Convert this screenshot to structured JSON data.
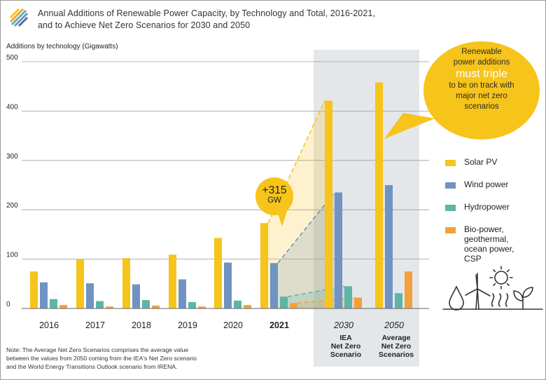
{
  "header": {
    "title_line1": "Annual Additions of Renewable Power Capacity, by Technology and Total, 2016-2021,",
    "title_line2": "and to Achieve Net Zero Scenarios for 2030 and 2050"
  },
  "callout": {
    "line1": "Renewable",
    "line2": "power additions",
    "emphasis": "must triple",
    "line3": "to be on track with",
    "line4": "major net zero",
    "line5": "scenarios"
  },
  "badge": {
    "value": "+315",
    "unit": "GW"
  },
  "legend": [
    {
      "label": "Solar PV",
      "color": "#f6c41a"
    },
    {
      "label": "Wind power",
      "color": "#7093c3"
    },
    {
      "label": "Hydropower",
      "color": "#5db5a8"
    },
    {
      "label": "Bio-power,\ngeothermal,\nocean power,\nCSP",
      "color": "#f3a03c"
    }
  ],
  "scenario_labels": [
    "IEA\nNet Zero\nScenario",
    "Average\nNet Zero\nScenarios"
  ],
  "note": "Note: The Average Net Zero Scenarios comprises the average value\nbetween the values from 2050 coming from the IEA's Net Zero scenario\nand the World Energy Transitions Outlook scenario from IRENA.",
  "colors": {
    "solar": "#f6c41a",
    "wind": "#7093c3",
    "hydro": "#5db5a8",
    "bio": "#f3a03c",
    "highlight_bg": "#e4e7ea",
    "callout_bg": "#f6c41a"
  },
  "icons": [
    "logo-stripes-icon",
    "water-drop-icon",
    "wind-turbine-icon",
    "sun-icon",
    "heat-waves-icon",
    "sprout-icon"
  ],
  "chart_data": {
    "type": "bar",
    "title": "Annual Additions of Renewable Power Capacity, by Technology and Total, 2016-2021, and to Achieve Net Zero Scenarios for 2030 and 2050",
    "ylabel": "Additions by technology (Gigawatts)",
    "xlabel": "",
    "ylim": [
      0,
      500
    ],
    "yticks": [
      0,
      100,
      200,
      300,
      400,
      500
    ],
    "grid": true,
    "legend_position": "right",
    "categories": [
      "2016",
      "2017",
      "2018",
      "2019",
      "2020",
      "2021",
      "2030",
      "2050"
    ],
    "highlight_category": "2021",
    "scenario_categories": [
      "2030",
      "2050"
    ],
    "series": [
      {
        "name": "Solar PV",
        "values": [
          75,
          100,
          102,
          109,
          143,
          173,
          421,
          458
        ]
      },
      {
        "name": "Wind power",
        "values": [
          53,
          51,
          49,
          59,
          93,
          92,
          235,
          250
        ]
      },
      {
        "name": "Hydropower",
        "values": [
          19,
          15,
          17,
          13,
          16,
          24,
          45,
          31
        ]
      },
      {
        "name": "Bio-power, geothermal, ocean power, CSP",
        "values": [
          7,
          4,
          6,
          4,
          7,
          11,
          22,
          75
        ]
      }
    ],
    "annotation": "+315 GW"
  }
}
